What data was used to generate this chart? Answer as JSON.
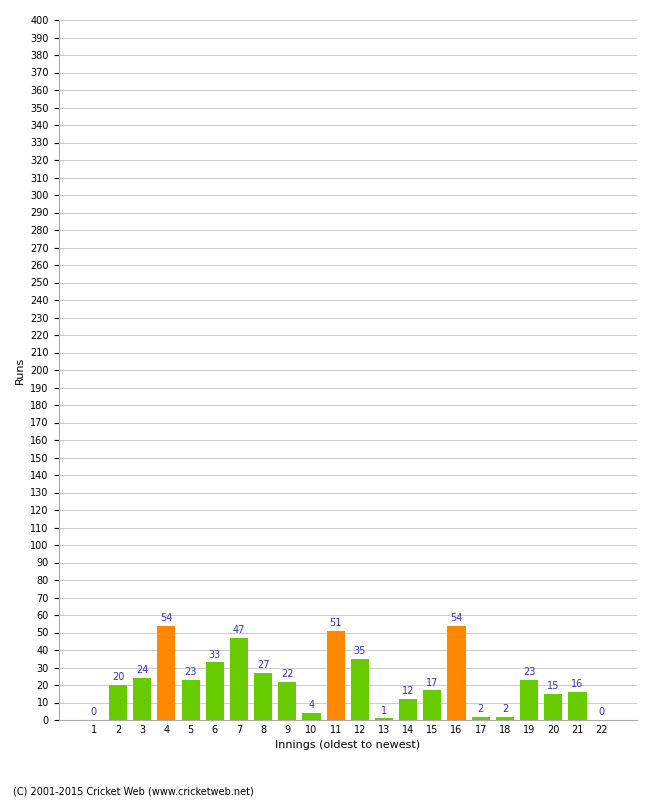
{
  "xlabel": "Innings (oldest to newest)",
  "ylabel": "Runs",
  "categories": [
    1,
    2,
    3,
    4,
    5,
    6,
    7,
    8,
    9,
    10,
    11,
    12,
    13,
    14,
    15,
    16,
    17,
    18,
    19,
    20,
    21,
    22
  ],
  "values": [
    0,
    20,
    24,
    54,
    23,
    33,
    47,
    27,
    22,
    4,
    51,
    35,
    1,
    12,
    17,
    54,
    2,
    2,
    23,
    15,
    16,
    0
  ],
  "bar_colors": [
    "#66cc00",
    "#66cc00",
    "#66cc00",
    "#ff8800",
    "#66cc00",
    "#66cc00",
    "#66cc00",
    "#66cc00",
    "#66cc00",
    "#66cc00",
    "#ff8800",
    "#66cc00",
    "#66cc00",
    "#66cc00",
    "#66cc00",
    "#ff8800",
    "#66cc00",
    "#66cc00",
    "#66cc00",
    "#66cc00",
    "#66cc00",
    "#66cc00"
  ],
  "ylim": [
    0,
    400
  ],
  "yticks": [
    0,
    10,
    20,
    30,
    40,
    50,
    60,
    70,
    80,
    90,
    100,
    110,
    120,
    130,
    140,
    150,
    160,
    170,
    180,
    190,
    200,
    210,
    220,
    230,
    240,
    250,
    260,
    270,
    280,
    290,
    300,
    310,
    320,
    330,
    340,
    350,
    360,
    370,
    380,
    390,
    400
  ],
  "label_color": "#3333cc",
  "background_color": "#ffffff",
  "grid_color": "#cccccc",
  "footer": "(C) 2001-2015 Cricket Web (www.cricketweb.net)"
}
